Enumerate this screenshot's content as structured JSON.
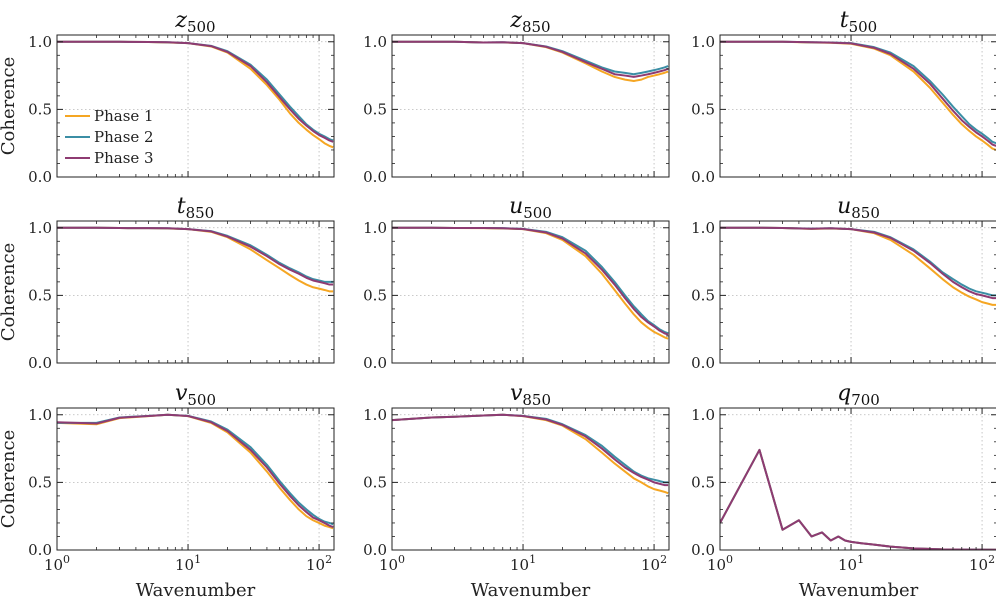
{
  "chart_data": {
    "type": "line",
    "layout": "3x3 grid",
    "xscale": "log",
    "xlim": [
      1,
      130
    ],
    "ylim": [
      0,
      1.05
    ],
    "xlabel": "Wavenumber",
    "ylabel": "Coherence",
    "y_ticks": [
      "0.0",
      "0.5",
      "1.0"
    ],
    "x_ticks": [
      {
        "base": "10",
        "exp": "0"
      },
      {
        "base": "10",
        "exp": "1"
      },
      {
        "base": "10",
        "exp": "2"
      }
    ],
    "grid": "dotted",
    "legend": {
      "location": "left-center",
      "panel": "z500",
      "entries": [
        "Phase 1",
        "Phase 2",
        "Phase 3"
      ]
    },
    "series_colors": {
      "Phase 1": "#f5a623",
      "Phase 2": "#3b8ea5",
      "Phase 3": "#8e3b72"
    },
    "x": [
      1,
      2,
      3,
      5,
      7,
      10,
      15,
      20,
      30,
      40,
      50,
      60,
      70,
      80,
      90,
      100,
      110,
      120,
      128
    ],
    "panels": [
      {
        "id": "z500",
        "title_var": "z",
        "title_sub": "500",
        "series": [
          {
            "name": "Phase 1",
            "values": [
              1.0,
              1.0,
              1.0,
              0.998,
              0.995,
              0.99,
              0.965,
              0.92,
              0.8,
              0.68,
              0.57,
              0.47,
              0.4,
              0.35,
              0.31,
              0.28,
              0.25,
              0.23,
              0.22
            ]
          },
          {
            "name": "Phase 2",
            "values": [
              1.0,
              1.0,
              1.0,
              0.998,
              0.996,
              0.99,
              0.97,
              0.93,
              0.83,
              0.72,
              0.61,
              0.52,
              0.45,
              0.39,
              0.35,
              0.32,
              0.3,
              0.28,
              0.27
            ]
          },
          {
            "name": "Phase 3",
            "values": [
              1.0,
              1.0,
              1.0,
              0.998,
              0.996,
              0.99,
              0.968,
              0.925,
              0.82,
              0.7,
              0.59,
              0.5,
              0.43,
              0.38,
              0.34,
              0.31,
              0.29,
              0.27,
              0.26
            ]
          }
        ]
      },
      {
        "id": "z850",
        "title_var": "z",
        "title_sub": "850",
        "series": [
          {
            "name": "Phase 1",
            "values": [
              1.0,
              1.0,
              1.0,
              0.995,
              0.995,
              0.99,
              0.96,
              0.92,
              0.84,
              0.78,
              0.74,
              0.72,
              0.71,
              0.72,
              0.74,
              0.75,
              0.76,
              0.77,
              0.78
            ]
          },
          {
            "name": "Phase 2",
            "values": [
              1.0,
              1.0,
              1.0,
              0.995,
              0.996,
              0.99,
              0.965,
              0.93,
              0.86,
              0.81,
              0.78,
              0.77,
              0.76,
              0.77,
              0.78,
              0.79,
              0.8,
              0.81,
              0.82
            ]
          },
          {
            "name": "Phase 3",
            "values": [
              1.0,
              1.0,
              1.0,
              0.995,
              0.996,
              0.99,
              0.963,
              0.925,
              0.85,
              0.8,
              0.76,
              0.75,
              0.74,
              0.75,
              0.76,
              0.77,
              0.78,
              0.79,
              0.8
            ]
          }
        ]
      },
      {
        "id": "t500",
        "title_var": "t",
        "title_sub": "500",
        "series": [
          {
            "name": "Phase 1",
            "values": [
              1.0,
              1.0,
              1.0,
              0.995,
              0.993,
              0.985,
              0.95,
              0.9,
              0.78,
              0.66,
              0.55,
              0.46,
              0.39,
              0.34,
              0.3,
              0.27,
              0.24,
              0.21,
              0.2
            ]
          },
          {
            "name": "Phase 2",
            "values": [
              1.0,
              1.0,
              1.0,
              0.996,
              0.995,
              0.99,
              0.96,
              0.92,
              0.82,
              0.71,
              0.61,
              0.52,
              0.45,
              0.39,
              0.35,
              0.32,
              0.29,
              0.26,
              0.25
            ]
          },
          {
            "name": "Phase 3",
            "values": [
              1.0,
              1.0,
              1.0,
              0.996,
              0.994,
              0.988,
              0.955,
              0.91,
              0.8,
              0.69,
              0.58,
              0.49,
              0.42,
              0.37,
              0.33,
              0.3,
              0.27,
              0.24,
              0.23
            ]
          }
        ]
      },
      {
        "id": "t850",
        "title_var": "t",
        "title_sub": "850",
        "series": [
          {
            "name": "Phase 1",
            "values": [
              1.0,
              1.0,
              0.998,
              0.997,
              0.995,
              0.99,
              0.97,
              0.93,
              0.84,
              0.76,
              0.7,
              0.65,
              0.61,
              0.58,
              0.56,
              0.55,
              0.54,
              0.53,
              0.53
            ]
          },
          {
            "name": "Phase 2",
            "values": [
              1.0,
              1.0,
              0.998,
              0.997,
              0.996,
              0.99,
              0.975,
              0.94,
              0.87,
              0.8,
              0.74,
              0.7,
              0.67,
              0.64,
              0.62,
              0.61,
              0.6,
              0.6,
              0.6
            ]
          },
          {
            "name": "Phase 3",
            "values": [
              1.0,
              1.0,
              0.998,
              0.997,
              0.996,
              0.99,
              0.973,
              0.935,
              0.86,
              0.79,
              0.73,
              0.69,
              0.66,
              0.63,
              0.61,
              0.6,
              0.59,
              0.58,
              0.58
            ]
          }
        ]
      },
      {
        "id": "u500",
        "title_var": "u",
        "title_sub": "500",
        "series": [
          {
            "name": "Phase 1",
            "values": [
              1.0,
              1.0,
              0.998,
              0.997,
              0.995,
              0.99,
              0.96,
              0.91,
              0.79,
              0.66,
              0.54,
              0.44,
              0.36,
              0.3,
              0.26,
              0.23,
              0.21,
              0.19,
              0.18
            ]
          },
          {
            "name": "Phase 2",
            "values": [
              1.0,
              1.0,
              0.998,
              0.998,
              0.997,
              0.992,
              0.97,
              0.93,
              0.83,
              0.71,
              0.6,
              0.5,
              0.42,
              0.36,
              0.31,
              0.28,
              0.25,
              0.23,
              0.22
            ]
          },
          {
            "name": "Phase 3",
            "values": [
              1.0,
              1.0,
              0.998,
              0.998,
              0.996,
              0.991,
              0.965,
              0.92,
              0.81,
              0.69,
              0.58,
              0.48,
              0.4,
              0.34,
              0.3,
              0.27,
              0.24,
              0.22,
              0.21
            ]
          }
        ]
      },
      {
        "id": "u850",
        "title_var": "u",
        "title_sub": "850",
        "series": [
          {
            "name": "Phase 1",
            "values": [
              1.0,
              1.0,
              0.998,
              0.992,
              0.995,
              0.99,
              0.96,
              0.91,
              0.8,
              0.7,
              0.62,
              0.56,
              0.52,
              0.49,
              0.47,
              0.45,
              0.44,
              0.43,
              0.43
            ]
          },
          {
            "name": "Phase 2",
            "values": [
              1.0,
              1.0,
              0.998,
              0.994,
              0.996,
              0.99,
              0.97,
              0.93,
              0.84,
              0.75,
              0.67,
              0.62,
              0.58,
              0.55,
              0.53,
              0.52,
              0.51,
              0.5,
              0.5
            ]
          },
          {
            "name": "Phase 3",
            "values": [
              1.0,
              1.0,
              0.998,
              0.993,
              0.996,
              0.99,
              0.965,
              0.925,
              0.83,
              0.74,
              0.66,
              0.6,
              0.56,
              0.53,
              0.51,
              0.5,
              0.49,
              0.48,
              0.48
            ]
          }
        ]
      },
      {
        "id": "v500",
        "title_var": "v",
        "title_sub": "500",
        "series": [
          {
            "name": "Phase 1",
            "values": [
              0.94,
              0.93,
              0.975,
              0.99,
              1.0,
              0.99,
              0.94,
              0.87,
              0.72,
              0.58,
              0.46,
              0.37,
              0.3,
              0.25,
              0.22,
              0.2,
              0.18,
              0.17,
              0.16
            ]
          },
          {
            "name": "Phase 2",
            "values": [
              0.94,
              0.94,
              0.98,
              0.992,
              1.0,
              0.992,
              0.95,
              0.89,
              0.76,
              0.63,
              0.51,
              0.42,
              0.35,
              0.3,
              0.26,
              0.23,
              0.21,
              0.2,
              0.19
            ]
          },
          {
            "name": "Phase 3",
            "values": [
              0.945,
              0.935,
              0.978,
              0.991,
              1.0,
              0.991,
              0.945,
              0.88,
              0.74,
              0.61,
              0.49,
              0.4,
              0.33,
              0.28,
              0.24,
              0.22,
              0.2,
              0.18,
              0.17
            ]
          }
        ]
      },
      {
        "id": "v850",
        "title_var": "v",
        "title_sub": "850",
        "series": [
          {
            "name": "Phase 1",
            "values": [
              0.96,
              0.98,
              0.985,
              0.995,
              1.0,
              0.99,
              0.96,
              0.92,
              0.82,
              0.72,
              0.64,
              0.58,
              0.53,
              0.5,
              0.47,
              0.45,
              0.44,
              0.43,
              0.42
            ]
          },
          {
            "name": "Phase 2",
            "values": [
              0.96,
              0.98,
              0.985,
              0.995,
              1.0,
              0.992,
              0.97,
              0.93,
              0.85,
              0.77,
              0.69,
              0.63,
              0.58,
              0.55,
              0.53,
              0.52,
              0.51,
              0.5,
              0.5
            ]
          },
          {
            "name": "Phase 3",
            "values": [
              0.96,
              0.98,
              0.985,
              0.995,
              1.0,
              0.991,
              0.965,
              0.925,
              0.84,
              0.75,
              0.67,
              0.61,
              0.57,
              0.54,
              0.52,
              0.5,
              0.49,
              0.48,
              0.48
            ]
          }
        ]
      },
      {
        "id": "q700",
        "title_var": "q",
        "title_sub": "700",
        "x": [
          1,
          2,
          3,
          4,
          5,
          6,
          7,
          8,
          9,
          10,
          12,
          15,
          20,
          30,
          50,
          80,
          128
        ],
        "series": [
          {
            "name": "Phase 1",
            "values": [
              0.2,
              0.74,
              0.15,
              0.22,
              0.1,
              0.13,
              0.07,
              0.1,
              0.07,
              0.06,
              0.05,
              0.04,
              0.025,
              0.012,
              0.005,
              0.003,
              0.002
            ]
          },
          {
            "name": "Phase 2",
            "values": [
              0.2,
              0.74,
              0.15,
              0.22,
              0.1,
              0.13,
              0.07,
              0.1,
              0.07,
              0.06,
              0.05,
              0.04,
              0.025,
              0.012,
              0.005,
              0.003,
              0.002
            ]
          },
          {
            "name": "Phase 3",
            "values": [
              0.2,
              0.74,
              0.15,
              0.22,
              0.1,
              0.13,
              0.07,
              0.1,
              0.07,
              0.06,
              0.05,
              0.04,
              0.025,
              0.012,
              0.005,
              0.003,
              0.002
            ]
          }
        ]
      }
    ]
  }
}
